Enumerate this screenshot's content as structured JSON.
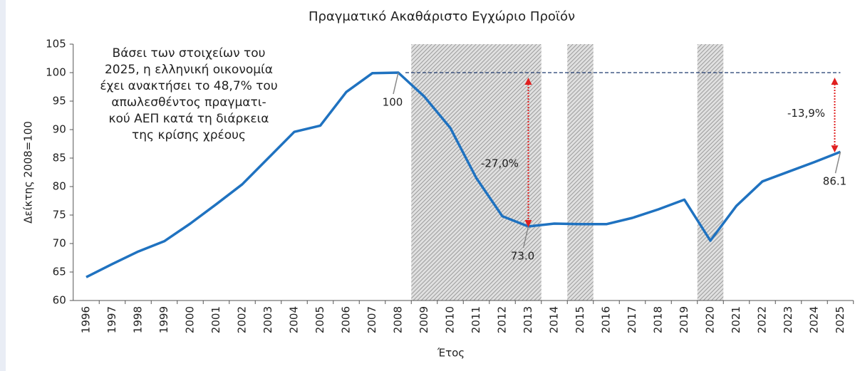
{
  "chart_data": {
    "type": "line",
    "title": "Πραγματικό Ακαθάριστο Εγχώριο Προϊόν",
    "y_label": "Δείκτης 2008=100",
    "x_label": "Έτος",
    "categories": [
      "1996",
      "1997",
      "1998",
      "1999",
      "2000",
      "2001",
      "2002",
      "2003",
      "2004",
      "2005",
      "2006",
      "2007",
      "2008",
      "2009",
      "2010",
      "2011",
      "2012",
      "2013",
      "2014",
      "2015",
      "2016",
      "2017",
      "2018",
      "2019",
      "2020",
      "2021",
      "2022",
      "2023",
      "2024",
      "2025"
    ],
    "series": [
      {
        "name": "ΑΕΠ",
        "color": "#1f72c0",
        "values": [
          64.1,
          66.4,
          68.6,
          70.4,
          73.5,
          76.9,
          80.4,
          85.0,
          89.6,
          90.7,
          96.6,
          99.9,
          100,
          95.8,
          90.3,
          81.5,
          74.8,
          73.0,
          73.5,
          73.4,
          73.4,
          74.5,
          76.0,
          77.7,
          70.5,
          76.6,
          80.9,
          82.6,
          84.3,
          86.1
        ],
        "value_labels": [
          null,
          null,
          null,
          null,
          null,
          null,
          null,
          null,
          null,
          null,
          null,
          null,
          "100",
          null,
          null,
          null,
          null,
          "73.0",
          null,
          null,
          null,
          null,
          null,
          null,
          null,
          null,
          null,
          null,
          null,
          "86.1"
        ]
      }
    ],
    "ylim": [
      60,
      105
    ],
    "yticks": [
      60,
      65,
      70,
      75,
      80,
      85,
      90,
      95,
      100,
      105
    ],
    "shaded_ranges": [
      [
        "2009",
        "2013"
      ],
      [
        "2015",
        "2015"
      ],
      [
        "2020",
        "2020"
      ]
    ],
    "reference_line": {
      "value": 100,
      "from": "2008",
      "to": "2025",
      "color": "#1f3a6e"
    },
    "arrows": [
      {
        "text": "-27,0%",
        "category": "2013",
        "from": 100,
        "to": 73.0,
        "color": "#e02020"
      },
      {
        "text": "-13,9%",
        "category": "2025",
        "from": 100,
        "to": 86.1,
        "color": "#e02020"
      }
    ],
    "note": [
      "Βάσει των στοιχείων του",
      "2025, η ελληνική οικονομία",
      "έχει ανακτήσει το 48,7% του",
      "απωλεσθέντος πραγματι-",
      "κού ΑΕΠ κατά τη διάρκεια",
      "της κρίσης χρέους"
    ]
  }
}
